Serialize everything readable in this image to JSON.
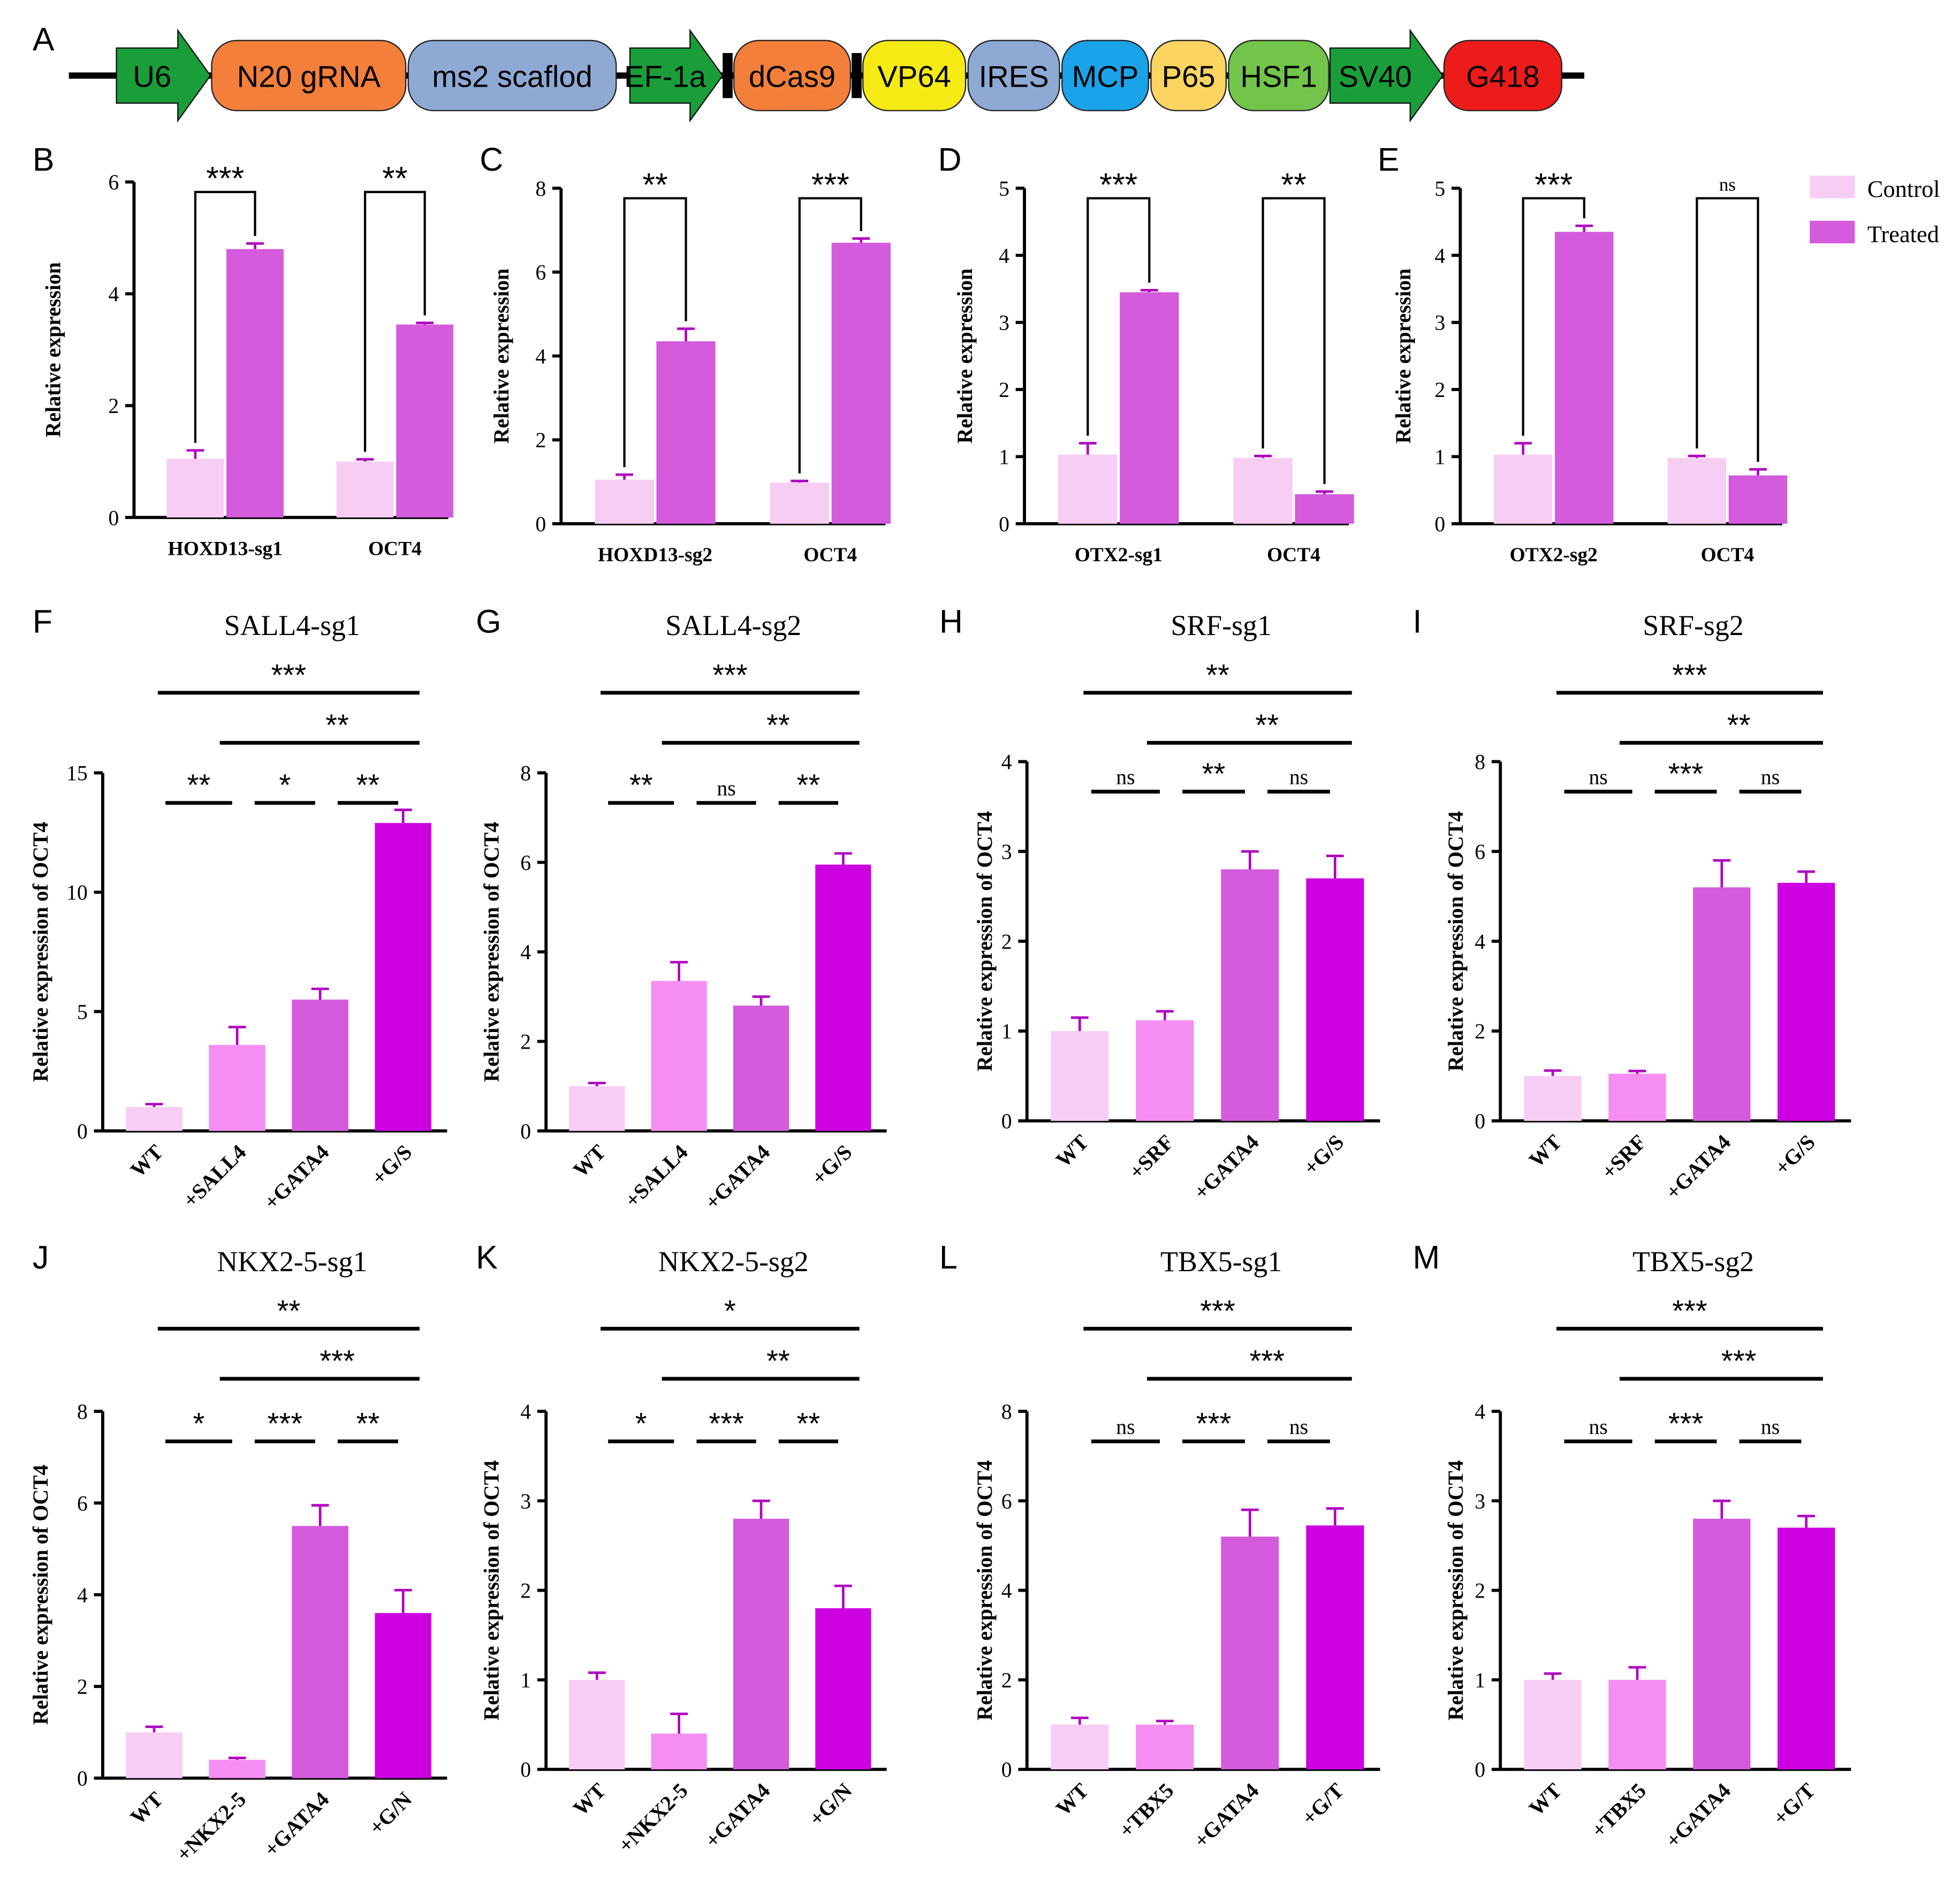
{
  "figure_title": "",
  "panel_A": {
    "label": "A",
    "elements": [
      {
        "text": "U6",
        "shape": "arrow",
        "color": "#1a9e3a"
      },
      {
        "text": "N20 gRNA",
        "shape": "box",
        "color": "#f47f3b"
      },
      {
        "text": "ms2 scaflod",
        "shape": "box",
        "color": "#8fa9d5"
      },
      {
        "text": "EF-1a",
        "shape": "arrow",
        "color": "#1a9e3a"
      },
      {
        "text": "",
        "shape": "bar",
        "color": "#000000"
      },
      {
        "text": "dCas9",
        "shape": "box",
        "color": "#f47f3b"
      },
      {
        "text": "",
        "shape": "bar",
        "color": "#000000"
      },
      {
        "text": "VP64",
        "shape": "box",
        "color": "#f5ea14"
      },
      {
        "text": "IRES",
        "shape": "box",
        "color": "#8fa9d5"
      },
      {
        "text": "MCP",
        "shape": "box",
        "color": "#1aa3e8"
      },
      {
        "text": "P65",
        "shape": "box",
        "color": "#fcd462"
      },
      {
        "text": "HSF1",
        "shape": "box",
        "color": "#72c54a"
      },
      {
        "text": "SV40",
        "shape": "arrow",
        "color": "#1a9e3a"
      },
      {
        "text": "G418",
        "shape": "box",
        "color": "#ee1b1b"
      }
    ]
  },
  "legend": {
    "entries": [
      {
        "name": "Control",
        "color": "#f7cdf4"
      },
      {
        "name": "Treated",
        "color": "#d35bdc"
      }
    ]
  },
  "colors": {
    "control": "#f7cdf4",
    "treated": "#d35bdc",
    "wt": "#f7cdf4",
    "single": "#f58ef2",
    "gata4": "#d35bdc",
    "combo": "#cc00e0"
  },
  "chart_data": [
    {
      "id": "B",
      "label": "B",
      "type": "bar",
      "title": "",
      "ylabel": "Relative expression",
      "ylim": [
        0,
        6
      ],
      "yticks": [
        0,
        2,
        4,
        6
      ],
      "categories": [
        "HOXD13-sg1",
        "OCT4"
      ],
      "series": [
        {
          "name": "Control",
          "values": [
            1.05,
            1.0
          ],
          "errors": [
            0.15,
            0.04
          ]
        },
        {
          "name": "Treated",
          "values": [
            4.8,
            3.45
          ],
          "errors": [
            0.1,
            0.03
          ]
        }
      ],
      "significance": [
        "***",
        "**"
      ]
    },
    {
      "id": "C",
      "label": "C",
      "type": "bar",
      "title": "",
      "ylabel": "Relative expression",
      "ylim": [
        0,
        8
      ],
      "yticks": [
        0,
        2,
        4,
        6,
        8
      ],
      "categories": [
        "HOXD13-sg2",
        "OCT4"
      ],
      "series": [
        {
          "name": "Control",
          "values": [
            1.05,
            0.98
          ],
          "errors": [
            0.12,
            0.04
          ]
        },
        {
          "name": "Treated",
          "values": [
            4.35,
            6.7
          ],
          "errors": [
            0.3,
            0.1
          ]
        }
      ],
      "significance": [
        "**",
        "***"
      ]
    },
    {
      "id": "D",
      "label": "D",
      "type": "bar",
      "title": "",
      "ylabel": "Relative expression",
      "ylim": [
        0,
        5
      ],
      "yticks": [
        0,
        1,
        2,
        3,
        4,
        5
      ],
      "categories": [
        "OTX2-sg1",
        "OCT4"
      ],
      "series": [
        {
          "name": "Control",
          "values": [
            1.03,
            0.98
          ],
          "errors": [
            0.17,
            0.03
          ]
        },
        {
          "name": "Treated",
          "values": [
            3.45,
            0.44
          ],
          "errors": [
            0.03,
            0.04
          ]
        }
      ],
      "significance": [
        "***",
        "**"
      ]
    },
    {
      "id": "E",
      "label": "E",
      "type": "bar",
      "title": "",
      "ylabel": "Relative expression",
      "ylim": [
        0,
        5
      ],
      "yticks": [
        0,
        1,
        2,
        3,
        4,
        5
      ],
      "categories": [
        "OTX2-sg2",
        "OCT4"
      ],
      "series": [
        {
          "name": "Control",
          "values": [
            1.03,
            0.98
          ],
          "errors": [
            0.17,
            0.03
          ]
        },
        {
          "name": "Treated",
          "values": [
            4.35,
            0.72
          ],
          "errors": [
            0.09,
            0.09
          ]
        }
      ],
      "significance": [
        "***",
        "ns"
      ]
    },
    {
      "id": "F",
      "label": "F",
      "type": "bar",
      "title": "SALL4-sg1",
      "ylabel": "Relative expression of OCT4",
      "ylim": [
        0,
        15
      ],
      "yticks": [
        0,
        5,
        10,
        15
      ],
      "categories": [
        "WT",
        "+SALL4",
        "+GATA4",
        "+G/S"
      ],
      "values": [
        1.0,
        3.6,
        5.5,
        12.9
      ],
      "errors": [
        0.12,
        0.75,
        0.45,
        0.55
      ],
      "comparisons_adjacent": [
        "**",
        "*",
        "**"
      ],
      "comparisons_long": [
        "***",
        "**"
      ]
    },
    {
      "id": "G",
      "label": "G",
      "type": "bar",
      "title": "SALL4-sg2",
      "ylabel": "Relative expression of OCT4",
      "ylim": [
        0,
        8
      ],
      "yticks": [
        0,
        2,
        4,
        6,
        8
      ],
      "categories": [
        "WT",
        "+SALL4",
        "+GATA4",
        "+G/S"
      ],
      "values": [
        1.0,
        3.35,
        2.8,
        5.95
      ],
      "errors": [
        0.07,
        0.42,
        0.2,
        0.25
      ],
      "comparisons_adjacent": [
        "**",
        "ns",
        "**"
      ],
      "comparisons_long": [
        "***",
        "**"
      ]
    },
    {
      "id": "H",
      "label": "H",
      "type": "bar",
      "title": "SRF-sg1",
      "ylabel": "Relative expression of OCT4",
      "ylim": [
        0,
        4
      ],
      "yticks": [
        0,
        1,
        2,
        3,
        4
      ],
      "categories": [
        "WT",
        "+SRF",
        "+GATA4",
        "+G/S"
      ],
      "values": [
        1.0,
        1.12,
        2.8,
        2.7
      ],
      "errors": [
        0.15,
        0.1,
        0.2,
        0.25
      ],
      "comparisons_adjacent": [
        "ns",
        "**",
        "ns"
      ],
      "comparisons_long": [
        "**",
        "**"
      ]
    },
    {
      "id": "I",
      "label": "I",
      "type": "bar",
      "title": "SRF-sg2",
      "ylabel": "Relative expression of OCT4",
      "ylim": [
        0,
        8
      ],
      "yticks": [
        0,
        2,
        4,
        6,
        8
      ],
      "categories": [
        "WT",
        "+SRF",
        "+GATA4",
        "+G/S"
      ],
      "values": [
        1.0,
        1.05,
        5.2,
        5.3
      ],
      "errors": [
        0.12,
        0.06,
        0.6,
        0.25
      ],
      "comparisons_adjacent": [
        "ns",
        "***",
        "ns"
      ],
      "comparisons_long": [
        "***",
        "**"
      ]
    },
    {
      "id": "J",
      "label": "J",
      "type": "bar",
      "title": "NKX2-5-sg1",
      "ylabel": "Relative expression of OCT4",
      "ylim": [
        0,
        8
      ],
      "yticks": [
        0,
        2,
        4,
        6,
        8
      ],
      "categories": [
        "WT",
        "+NKX2-5",
        "+GATA4",
        "+G/N"
      ],
      "values": [
        1.0,
        0.4,
        5.5,
        3.6
      ],
      "errors": [
        0.12,
        0.04,
        0.45,
        0.5
      ],
      "comparisons_adjacent": [
        "*",
        "***",
        "**"
      ],
      "comparisons_long": [
        "**",
        "***"
      ]
    },
    {
      "id": "K",
      "label": "K",
      "type": "bar",
      "title": "NKX2-5-sg2",
      "ylabel": "Relative expression of OCT4",
      "ylim": [
        0,
        4
      ],
      "yticks": [
        0,
        1,
        2,
        3,
        4
      ],
      "categories": [
        "WT",
        "+NKX2-5",
        "+GATA4",
        "+G/N"
      ],
      "values": [
        1.0,
        0.4,
        2.8,
        1.8
      ],
      "errors": [
        0.08,
        0.22,
        0.2,
        0.25
      ],
      "comparisons_adjacent": [
        "*",
        "***",
        "**"
      ],
      "comparisons_long": [
        "*",
        "**"
      ]
    },
    {
      "id": "L",
      "label": "L",
      "type": "bar",
      "title": "TBX5-sg1",
      "ylabel": "Relative expression of OCT4",
      "ylim": [
        0,
        8
      ],
      "yticks": [
        0,
        2,
        4,
        6,
        8
      ],
      "categories": [
        "WT",
        "+TBX5",
        "+GATA4",
        "+G/T"
      ],
      "values": [
        1.0,
        1.0,
        5.2,
        5.45
      ],
      "errors": [
        0.15,
        0.08,
        0.6,
        0.38
      ],
      "comparisons_adjacent": [
        "ns",
        "***",
        "ns"
      ],
      "comparisons_long": [
        "***",
        "***"
      ]
    },
    {
      "id": "M",
      "label": "M",
      "type": "bar",
      "title": "TBX5-sg2",
      "ylabel": "Relative expression of OCT4",
      "ylim": [
        0,
        4
      ],
      "yticks": [
        0,
        1,
        2,
        3,
        4
      ],
      "categories": [
        "WT",
        "+TBX5",
        "+GATA4",
        "+G/T"
      ],
      "values": [
        1.0,
        1.0,
        2.8,
        2.7
      ],
      "errors": [
        0.07,
        0.14,
        0.2,
        0.13
      ],
      "comparisons_adjacent": [
        "ns",
        "***",
        "ns"
      ],
      "comparisons_long": [
        "***",
        "***"
      ]
    }
  ]
}
